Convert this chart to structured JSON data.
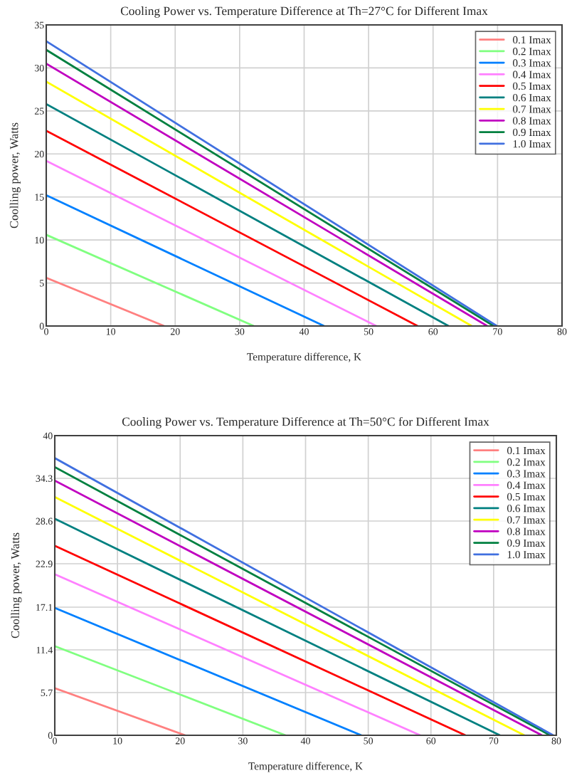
{
  "chart_data": [
    {
      "type": "line",
      "title": "Cooling Power vs. Temperature Difference at Th=27°C for Different Imax",
      "xlabel": "Temperature difference, K",
      "ylabel": "Coolling power, Watts",
      "xlim": [
        0,
        80
      ],
      "ylim": [
        0,
        35
      ],
      "xticks": [
        0,
        10,
        20,
        30,
        40,
        50,
        60,
        70,
        80
      ],
      "yticks": [
        0,
        5,
        10,
        15,
        20,
        25,
        30,
        35
      ],
      "grid": true,
      "legend": "top right",
      "series": [
        {
          "name": "0.1 Imax",
          "color": "#ff8080",
          "x": [
            0,
            18.3
          ],
          "values": [
            5.6,
            0
          ]
        },
        {
          "name": "0.2 Imax",
          "color": "#80ff80",
          "x": [
            0,
            32.2
          ],
          "values": [
            10.6,
            0
          ]
        },
        {
          "name": "0.3 Imax",
          "color": "#0080ff",
          "x": [
            0,
            43.1
          ],
          "values": [
            15.2,
            0
          ]
        },
        {
          "name": "0.4 Imax",
          "color": "#ff80ff",
          "x": [
            0,
            51.2
          ],
          "values": [
            19.2,
            0
          ]
        },
        {
          "name": "0.5 Imax",
          "color": "#ff0000",
          "x": [
            0,
            57.6
          ],
          "values": [
            22.7,
            0
          ]
        },
        {
          "name": "0.6 Imax",
          "color": "#008080",
          "x": [
            0,
            62.4
          ],
          "values": [
            25.8,
            0
          ]
        },
        {
          "name": "0.7 Imax",
          "color": "#ffff00",
          "x": [
            0,
            66.0
          ],
          "values": [
            28.4,
            0
          ]
        },
        {
          "name": "0.8 Imax",
          "color": "#c000c0",
          "x": [
            0,
            68.4
          ],
          "values": [
            30.5,
            0
          ]
        },
        {
          "name": "0.9 Imax",
          "color": "#008040",
          "x": [
            0,
            69.4
          ],
          "values": [
            32.1,
            0
          ]
        },
        {
          "name": "1.0 Imax",
          "color": "#4070e0",
          "x": [
            0,
            69.9
          ],
          "values": [
            33.1,
            0
          ]
        }
      ]
    },
    {
      "type": "line",
      "title": "Cooling Power vs. Temperature Difference at Th=50°C for Different Imax",
      "xlabel": "Temperature difference, K",
      "ylabel": "Coolling power, Watts",
      "xlim": [
        0,
        80
      ],
      "ylim": [
        0,
        40
      ],
      "xticks": [
        0,
        10,
        20,
        30,
        40,
        50,
        60,
        70,
        80
      ],
      "yticks": [
        0,
        5.7,
        11.4,
        17.1,
        22.9,
        28.6,
        34.3,
        40
      ],
      "grid": true,
      "legend": "top right",
      "series": [
        {
          "name": "0.1 Imax",
          "color": "#ff8080",
          "x": [
            0,
            20.8
          ],
          "values": [
            6.3,
            0
          ]
        },
        {
          "name": "0.2 Imax",
          "color": "#80ff80",
          "x": [
            0,
            36.8
          ],
          "values": [
            11.9,
            0
          ]
        },
        {
          "name": "0.3 Imax",
          "color": "#0080ff",
          "x": [
            0,
            48.9
          ],
          "values": [
            17.0,
            0
          ]
        },
        {
          "name": "0.4 Imax",
          "color": "#ff80ff",
          "x": [
            0,
            58.3
          ],
          "values": [
            21.5,
            0
          ]
        },
        {
          "name": "0.5 Imax",
          "color": "#ff0000",
          "x": [
            0,
            65.5
          ],
          "values": [
            25.3,
            0
          ]
        },
        {
          "name": "0.6 Imax",
          "color": "#008080",
          "x": [
            0,
            71.0
          ],
          "values": [
            28.9,
            0
          ]
        },
        {
          "name": "0.7 Imax",
          "color": "#ffff00",
          "x": [
            0,
            74.9
          ],
          "values": [
            31.8,
            0
          ]
        },
        {
          "name": "0.8 Imax",
          "color": "#c000c0",
          "x": [
            0,
            77.7
          ],
          "values": [
            34.0,
            0
          ]
        },
        {
          "name": "0.9 Imax",
          "color": "#008040",
          "x": [
            0,
            79.0
          ],
          "values": [
            35.8,
            0
          ]
        },
        {
          "name": "1.0 Imax",
          "color": "#4070e0",
          "x": [
            0,
            79.5
          ],
          "values": [
            37.0,
            0
          ]
        }
      ]
    }
  ]
}
